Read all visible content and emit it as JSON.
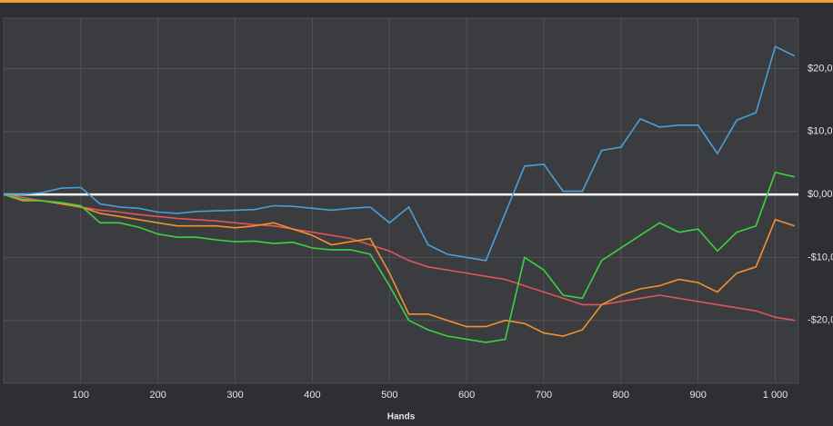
{
  "chart_data": {
    "type": "line",
    "x_label": "Hands",
    "x": [
      0,
      25,
      50,
      75,
      100,
      125,
      150,
      175,
      200,
      225,
      250,
      275,
      300,
      325,
      350,
      375,
      400,
      425,
      450,
      475,
      500,
      525,
      550,
      575,
      600,
      625,
      650,
      675,
      700,
      725,
      750,
      775,
      800,
      825,
      850,
      875,
      900,
      925,
      950,
      975,
      1000,
      1025
    ],
    "series": [
      {
        "color": "#4a9fd8",
        "values": [
          0,
          0,
          0.3,
          1,
          1.1,
          -1.5,
          -2,
          -2.2,
          -2.8,
          -3,
          -2.7,
          -2.6,
          -2.5,
          -2.4,
          -1.8,
          -1.9,
          -2.2,
          -2.5,
          -2.2,
          -2,
          -4.5,
          -2,
          -8,
          -9.5,
          -10,
          -10.5,
          -3,
          4.5,
          4.8,
          0.5,
          0.5,
          7,
          7.5,
          12,
          10.7,
          11,
          11,
          6.5,
          11.8,
          13,
          23.5,
          22
        ]
      },
      {
        "color": "#3fd13f",
        "values": [
          0,
          -0.8,
          -1,
          -1.3,
          -1.8,
          -4.5,
          -4.5,
          -5.2,
          -6.3,
          -6.8,
          -6.8,
          -7.2,
          -7.5,
          -7.4,
          -7.8,
          -7.6,
          -8.5,
          -8.8,
          -8.8,
          -9.5,
          -14.5,
          -20,
          -21.5,
          -22.5,
          -23,
          -23.5,
          -23,
          -10,
          -12,
          -16,
          -16.5,
          -10.5,
          -8.5,
          -6.5,
          -4.5,
          -6,
          -5.5,
          -9,
          -6,
          -5,
          3.5,
          2.8
        ]
      },
      {
        "color": "#f0922e",
        "values": [
          0,
          -1,
          -1,
          -1.5,
          -2,
          -3,
          -3.5,
          -4,
          -4.5,
          -5,
          -5,
          -5,
          -5.3,
          -5,
          -4.5,
          -5.5,
          -6.5,
          -8,
          -7.5,
          -7,
          -12.5,
          -19,
          -19,
          -20,
          -21,
          -21,
          -20,
          -20.5,
          -22,
          -22.5,
          -21.5,
          -17.5,
          -16,
          -15,
          -14.5,
          -13.5,
          -14,
          -15.5,
          -12.5,
          -11.5,
          -4,
          -5
        ]
      },
      {
        "color": "#e0555a",
        "values": [
          0,
          -0.5,
          -1,
          -1.5,
          -2,
          -2.5,
          -2.8,
          -3.2,
          -3.5,
          -3.8,
          -4,
          -4.2,
          -4.5,
          -4.8,
          -5,
          -5.5,
          -6,
          -6.5,
          -7,
          -8,
          -9,
          -10.5,
          -11.5,
          -12,
          -12.5,
          -13,
          -13.5,
          -14.5,
          -15.5,
          -16.5,
          -17.5,
          -17.5,
          -17,
          -16.5,
          -16,
          -16.5,
          -17,
          -17.5,
          -18,
          -18.5,
          -19.5,
          -20
        ]
      }
    ],
    "xlim": [
      0,
      1030
    ],
    "xticks": [
      100,
      200,
      300,
      400,
      500,
      600,
      700,
      800,
      900,
      {
        "value": 1000,
        "label": "1 000"
      }
    ],
    "ylim": [
      -30,
      28
    ],
    "yticks": [
      {
        "value": 20,
        "label": "$20,0"
      },
      {
        "value": 10,
        "label": "$10,0"
      },
      {
        "value": 0,
        "label": "$0,00"
      },
      {
        "value": -10,
        "label": "-$10,0"
      },
      {
        "value": -20,
        "label": "-$20,0"
      }
    ],
    "grid": true
  }
}
